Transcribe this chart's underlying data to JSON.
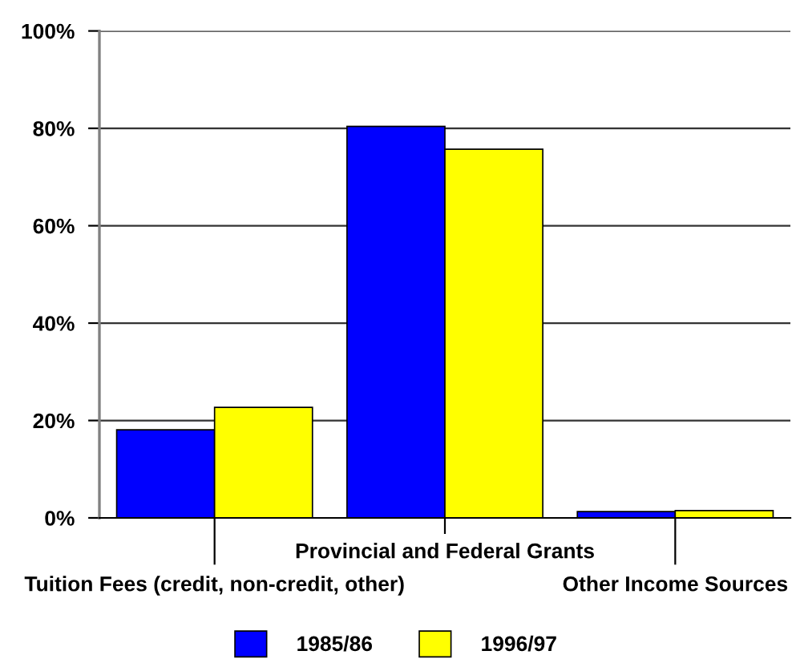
{
  "chart_data": {
    "type": "bar",
    "categories": [
      "Tuition Fees (credit, non-credit, other)",
      "Provincial and Federal Grants",
      "Other Income Sources"
    ],
    "series": [
      {
        "name": "1985/86",
        "color": "#0000ff",
        "values": [
          18.1,
          80.4,
          1.3
        ]
      },
      {
        "name": "1996/97",
        "color": "#ffff00",
        "values": [
          22.7,
          75.7,
          1.5
        ]
      }
    ],
    "ylim": [
      0,
      100
    ],
    "yticks": [
      {
        "value": 0,
        "label": "0%"
      },
      {
        "value": 20,
        "label": "20%"
      },
      {
        "value": 40,
        "label": "40%"
      },
      {
        "value": 60,
        "label": "60%"
      },
      {
        "value": 80,
        "label": "80%"
      },
      {
        "value": 100,
        "label": "100%"
      }
    ],
    "grid": "y",
    "legend": "bottom"
  }
}
